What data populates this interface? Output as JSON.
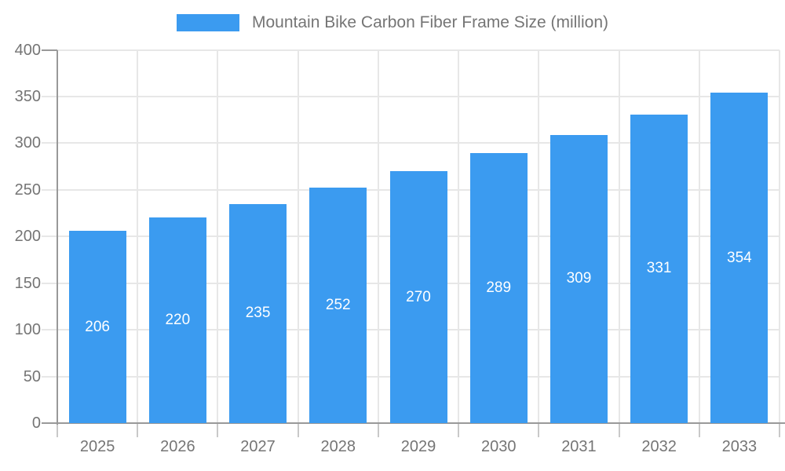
{
  "legend": {
    "label": "Mountain Bike Carbon Fiber Frame Size (million)"
  },
  "chart_data": {
    "type": "bar",
    "title": "Mountain Bike Carbon Fiber Frame Size (million)",
    "categories": [
      "2025",
      "2026",
      "2027",
      "2028",
      "2029",
      "2030",
      "2031",
      "2032",
      "2033"
    ],
    "series": [
      {
        "name": "Mountain Bike Carbon Fiber Frame Size (million)",
        "values": [
          206,
          220,
          235,
          252,
          270,
          289,
          309,
          331,
          354
        ]
      }
    ],
    "value_labels": [
      "206",
      "220",
      "235",
      "252",
      "270",
      "289",
      "309",
      "331",
      "354"
    ],
    "ytick_labels": [
      "0",
      "50",
      "100",
      "150",
      "200",
      "250",
      "300",
      "350",
      "400"
    ],
    "ylim": [
      0,
      400
    ],
    "ytick_step": 50,
    "grid": true,
    "legend_position": "top",
    "colors": {
      "bar": "#3B9BF0",
      "axis": "#999999",
      "grid": "#E7E7E7",
      "tick": "#C9C9C9",
      "text": "#757575",
      "value_label": "#FFFFFF",
      "background": "#FFFFFF"
    }
  }
}
